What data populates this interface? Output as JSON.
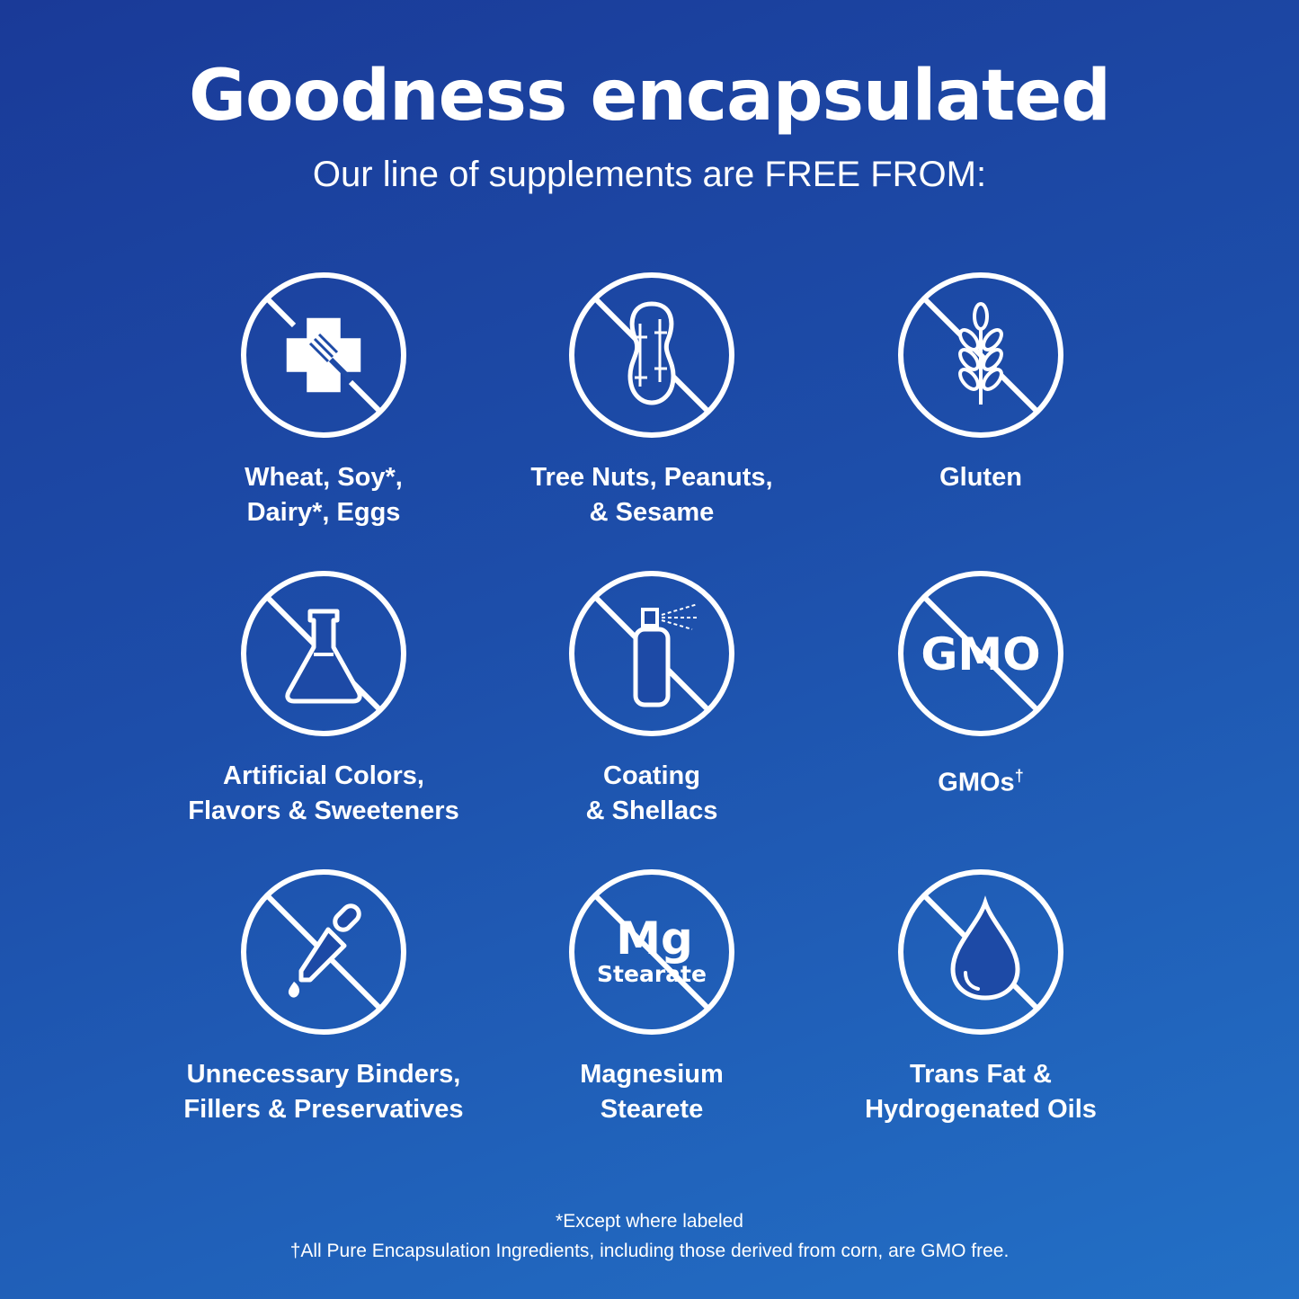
{
  "header": {
    "title": "Goodness encapsulated",
    "subtitle": "Our line of supplements are FREE FROM:"
  },
  "items": [
    {
      "icon": "wheat-soy-dairy-eggs-icon",
      "line1": "Wheat, Soy*,",
      "line2": "Dairy*, Eggs"
    },
    {
      "icon": "peanut-icon",
      "line1": "Tree Nuts, Peanuts,",
      "line2": "& Sesame"
    },
    {
      "icon": "wheat-stalk-icon",
      "line1": "Gluten",
      "line2": ""
    },
    {
      "icon": "flask-icon",
      "line1": "Artificial Colors,",
      "line2": "Flavors & Sweeteners"
    },
    {
      "icon": "spray-can-icon",
      "line1": "Coating",
      "line2": "& Shellacs"
    },
    {
      "icon": "gmo-icon",
      "icon_text": "GMO",
      "line1": "GMOs",
      "sup": "†",
      "line2": ""
    },
    {
      "icon": "dropper-icon",
      "line1": "Unnecessary Binders,",
      "line2": "Fillers & Preservatives"
    },
    {
      "icon": "mg-stearate-icon",
      "icon_text": "Mg",
      "icon_subtext": "Stearate",
      "line1": "Magnesium",
      "line2": "Stearete"
    },
    {
      "icon": "oil-drop-icon",
      "line1": "Trans Fat &",
      "line2": "Hydrogenated Oils"
    }
  ],
  "footer": {
    "note1": "*Except where labeled",
    "note2": "†All Pure Encapsulation Ingredients, including those derived from corn, are GMO free."
  },
  "colors": {
    "background_start": "#1a3a98",
    "background_end": "#2370c6",
    "foreground": "#ffffff"
  }
}
